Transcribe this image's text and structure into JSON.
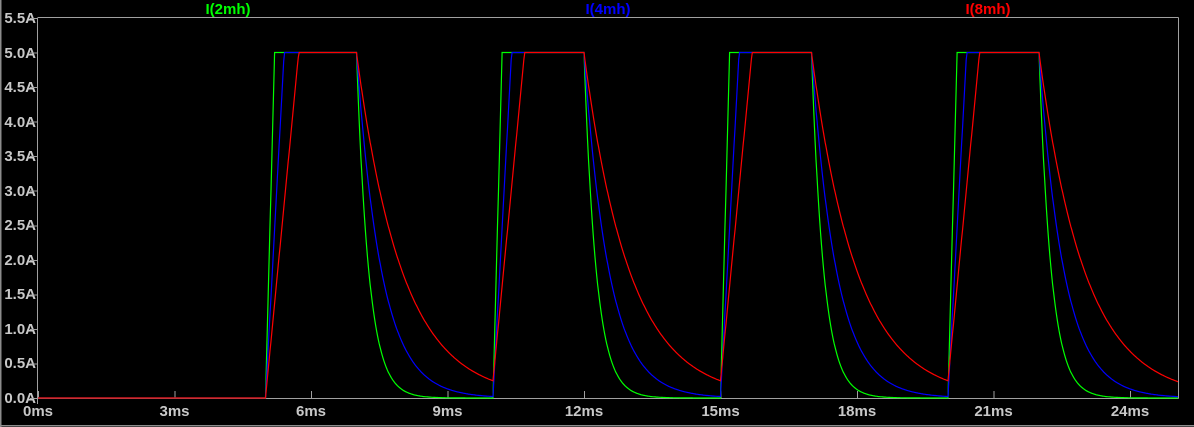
{
  "window": {
    "background": "#000000",
    "edge_color": "#8C8C8C",
    "axis_color": "#A0A0A0",
    "text_color": "#C8C8C8"
  },
  "chart_data": {
    "type": "line",
    "title": "",
    "legend_position": "top",
    "grid": false,
    "x_axis": {
      "unit": "ms",
      "range_ms": [
        0,
        25.05
      ],
      "ticks": [
        "0ms",
        "3ms",
        "6ms",
        "9ms",
        "12ms",
        "15ms",
        "18ms",
        "21ms",
        "24ms"
      ],
      "tick_values_ms": [
        0,
        3,
        6,
        9,
        12,
        15,
        18,
        21,
        24
      ]
    },
    "y_axis": {
      "unit": "A",
      "range_a": [
        0,
        5.5
      ],
      "ticks": [
        "5.5A",
        "5.0A",
        "4.5A",
        "4.0A",
        "3.5A",
        "3.0A",
        "2.5A",
        "2.0A",
        "1.5A",
        "1.0A",
        "0.5A",
        "0.0A"
      ],
      "tick_values_a": [
        5.5,
        5.0,
        4.5,
        4.0,
        3.5,
        3.0,
        2.5,
        2.0,
        1.5,
        1.0,
        0.5,
        0.0
      ]
    },
    "waveform": {
      "description": "Periodic trapezoidal inductor-current pulses: linear ramp up to 5A (slope ~ 1/L), 5A plateau until 2ms after pulse start, then exponential decay (tau ~ L/R). All traces 0A before 5ms.",
      "amplitude_a": 5.0,
      "pulse_start_times_ms": [
        5,
        10,
        15,
        20
      ],
      "on_time_ms": 2,
      "off_time_ms": 3,
      "period_ms": 5
    },
    "series": [
      {
        "name": "I(2mh)",
        "color": "#00FF00",
        "rise_ramp_ms": 0.2,
        "decay_tau_ms": 0.27
      },
      {
        "name": "I(4mh)",
        "color": "#0000FF",
        "rise_ramp_ms": 0.41,
        "decay_tau_ms": 0.55
      },
      {
        "name": "I(8mh)",
        "color": "#FF0000",
        "rise_ramp_ms": 0.73,
        "decay_tau_ms": 1.0
      }
    ]
  }
}
